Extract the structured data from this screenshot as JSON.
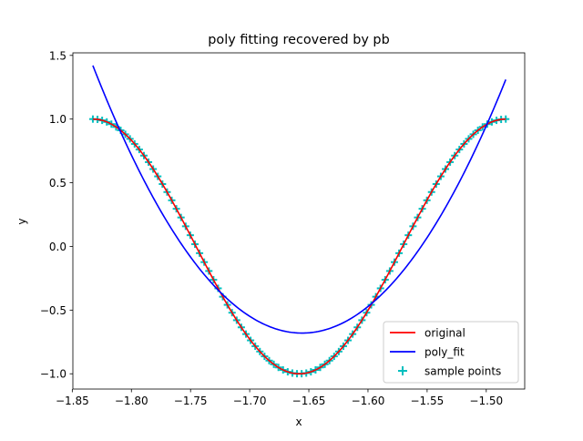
{
  "chart_data": {
    "type": "line",
    "title": "poly fitting recovered by pb",
    "xlabel": "x",
    "ylabel": "y",
    "xlim": [
      -1.8495,
      -1.4675
    ],
    "ylim": [
      -1.12,
      1.52
    ],
    "xticks": [
      -1.85,
      -1.8,
      -1.75,
      -1.7,
      -1.65,
      -1.6,
      -1.55,
      -1.5
    ],
    "xtick_labels": [
      "−1.85",
      "−1.80",
      "−1.75",
      "−1.70",
      "−1.65",
      "−1.60",
      "−1.55",
      "−1.50"
    ],
    "yticks": [
      -1.0,
      -0.5,
      0.0,
      0.5,
      1.0,
      1.5
    ],
    "ytick_labels": [
      "−1.0",
      "−0.5",
      "0.0",
      "0.5",
      "1.0",
      "1.5"
    ],
    "grid": false,
    "legend_position": "lower-right",
    "x_range": [
      -1.8326,
      -1.4835
    ],
    "series": [
      {
        "name": "original",
        "kind": "line",
        "color": "#ff0000",
        "description": "cosine-shaped curve",
        "x": [
          -1.8326,
          -1.8,
          -1.76,
          -1.72,
          -1.69,
          -1.6596,
          -1.63,
          -1.6,
          -1.56,
          -1.52,
          -1.4835
        ],
        "y": [
          1.0,
          0.88,
          0.44,
          -0.28,
          -0.78,
          -1.0,
          -0.82,
          -0.37,
          0.33,
          0.88,
          1.0
        ]
      },
      {
        "name": "poly_fit",
        "kind": "line",
        "color": "#0000ff",
        "x": [
          -1.8326,
          -1.8,
          -1.75,
          -1.72,
          -1.7,
          -1.66,
          -1.62,
          -1.6,
          -1.55,
          -1.52,
          -1.4835
        ],
        "y": [
          1.42,
          0.87,
          0.15,
          -0.24,
          -0.43,
          -0.68,
          -0.52,
          -0.37,
          0.22,
          0.64,
          1.31
        ]
      },
      {
        "name": "sample points",
        "kind": "scatter",
        "marker": "+",
        "color": "#00bfbf",
        "count": 90
      }
    ]
  }
}
